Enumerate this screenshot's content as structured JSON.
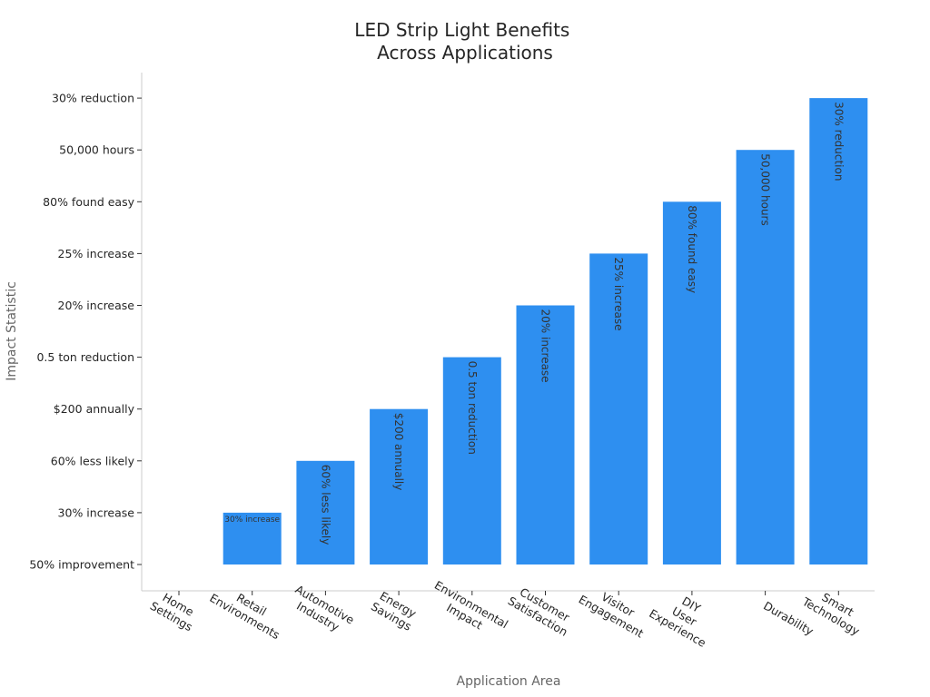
{
  "chart_data": {
    "type": "bar",
    "title": "LED Strip Light Benefits\nAcross Applications",
    "xlabel": "Application Area",
    "ylabel": "Impact Statistic",
    "categories": [
      "Home Settings",
      "Retail Environments",
      "Automotive Industry",
      "Energy Savings",
      "Environmental Impact",
      "Customer Satisfaction",
      "Visitor Engagement",
      "DIY User Experience",
      "Durability",
      "Smart Technology"
    ],
    "y_categories": [
      "50% improvement",
      "30% increase",
      "60% less likely",
      "$200 annually",
      "0.5 ton reduction",
      "20% increase",
      "25% increase",
      "80% found easy",
      "50,000 hours",
      "30% reduction"
    ],
    "values": [
      0,
      1,
      2,
      3,
      4,
      5,
      6,
      7,
      8,
      9
    ],
    "data_labels": [
      "50% improvement",
      "30% increase",
      "60% less likely",
      "$200 annually",
      "0.5 ton reduction",
      "20% increase",
      "25% increase",
      "80% found easy",
      "50,000 hours",
      "30% reduction"
    ],
    "bar_color": "#2e8ff0",
    "grid": false,
    "legend": "none"
  }
}
